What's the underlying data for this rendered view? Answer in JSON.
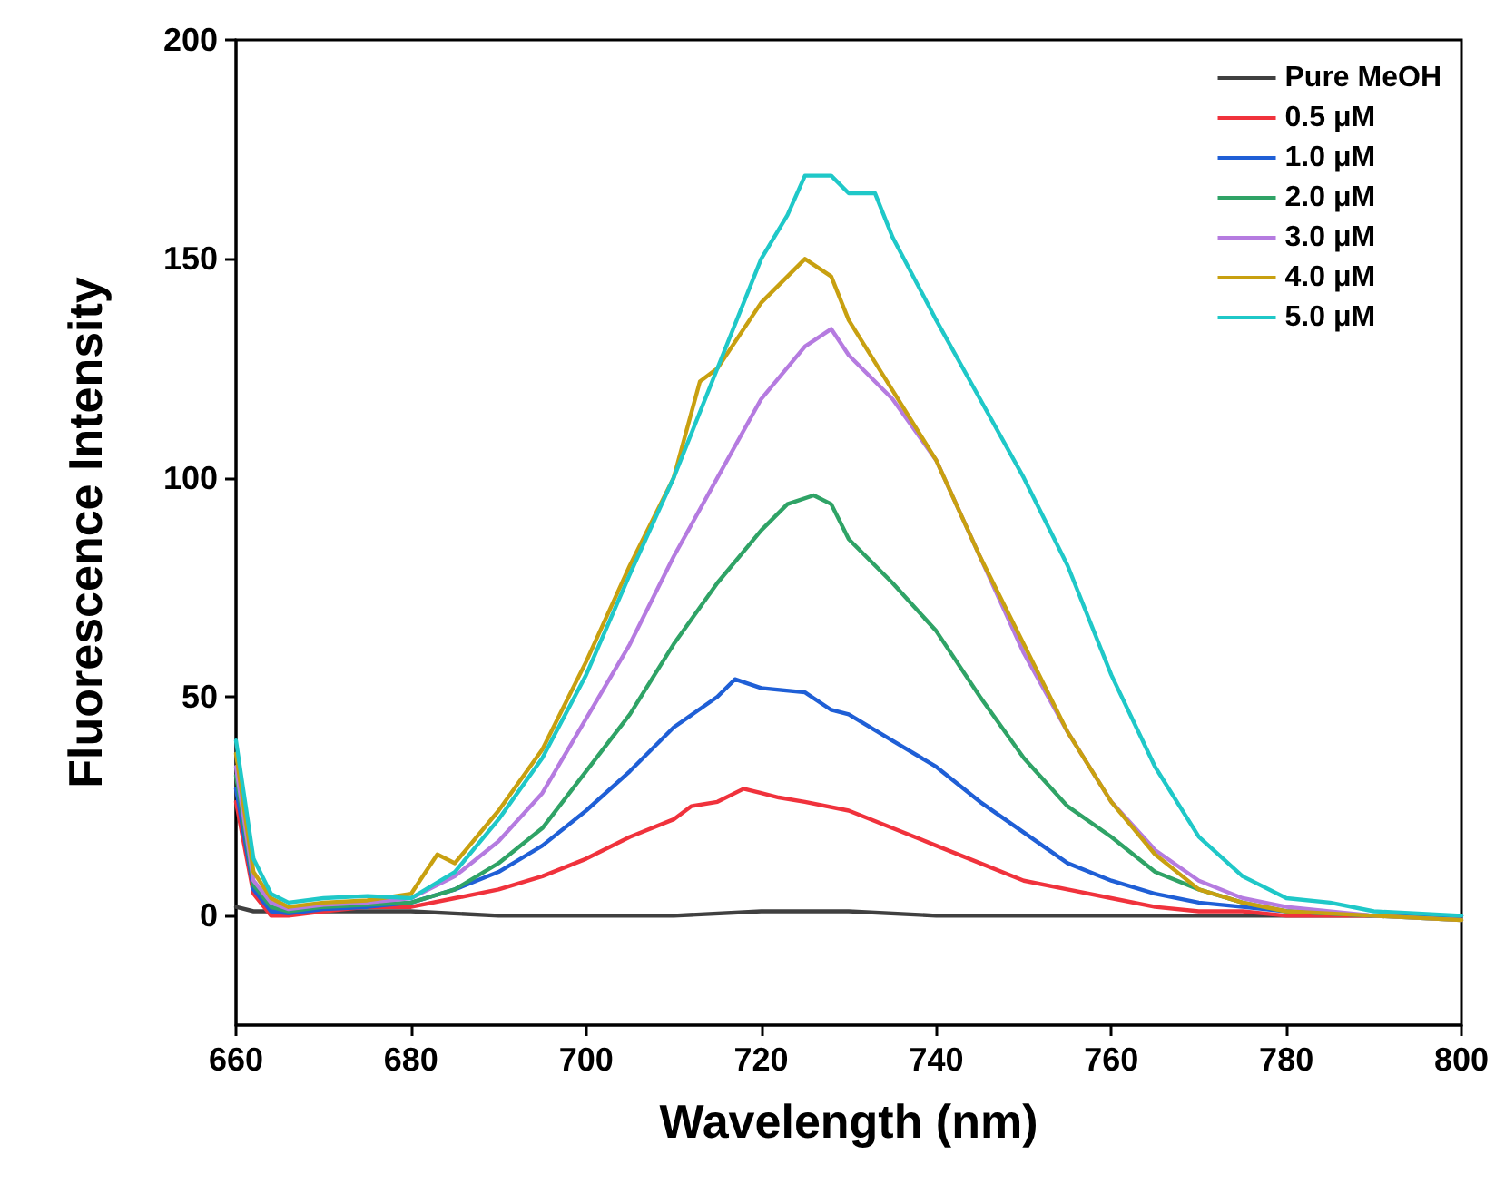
{
  "chart_data": {
    "type": "line",
    "xlabel": "Wavelength (nm)",
    "ylabel": "Fluorescence Intensity",
    "xlim": [
      660,
      800
    ],
    "xticks": [
      660,
      680,
      700,
      720,
      740,
      760,
      780,
      800
    ],
    "ylim": [
      -25,
      200
    ],
    "yticks": [
      0,
      50,
      100,
      150,
      200
    ],
    "grid": false,
    "legend": "top right",
    "marker": "none",
    "line_style": "solid",
    "series": [
      {
        "name": "Pure MeOH",
        "color": "#404040",
        "x": [
          660,
          662,
          665,
          670,
          680,
          690,
          700,
          710,
          720,
          730,
          740,
          750,
          760,
          770,
          780,
          790,
          800
        ],
        "values": [
          2,
          1,
          1,
          1,
          1,
          0,
          0,
          0,
          1,
          1,
          0,
          0,
          0,
          0,
          0,
          0,
          0
        ]
      },
      {
        "name": "0.5 μM",
        "color": "#f0323c",
        "x": [
          660,
          662,
          664,
          666,
          670,
          675,
          680,
          685,
          690,
          695,
          700,
          705,
          710,
          712,
          715,
          718,
          720,
          722,
          725,
          730,
          735,
          740,
          745,
          750,
          755,
          760,
          765,
          770,
          775,
          780,
          790,
          800
        ],
        "values": [
          26,
          5,
          0,
          0,
          1,
          2,
          2,
          4,
          6,
          9,
          13,
          18,
          22,
          25,
          26,
          29,
          28,
          27,
          26,
          24,
          20,
          16,
          12,
          8,
          6,
          4,
          2,
          1,
          1,
          0,
          0,
          0
        ]
      },
      {
        "name": "1.0 μM",
        "color": "#1f5fd6",
        "x": [
          660,
          662,
          664,
          666,
          670,
          675,
          680,
          685,
          690,
          695,
          700,
          705,
          710,
          715,
          717,
          720,
          725,
          728,
          730,
          735,
          740,
          745,
          750,
          755,
          760,
          765,
          770,
          775,
          780,
          790,
          800
        ],
        "values": [
          29,
          6,
          1,
          0.5,
          1.5,
          2,
          3,
          6,
          10,
          16,
          24,
          33,
          43,
          50,
          54,
          52,
          51,
          47,
          46,
          40,
          34,
          26,
          19,
          12,
          8,
          5,
          3,
          2,
          1,
          0,
          0
        ]
      },
      {
        "name": "2.0 μM",
        "color": "#2fa366",
        "x": [
          660,
          662,
          664,
          666,
          670,
          675,
          680,
          685,
          690,
          695,
          700,
          705,
          710,
          715,
          720,
          723,
          726,
          728,
          730,
          735,
          740,
          745,
          750,
          755,
          760,
          765,
          770,
          775,
          780,
          790,
          800
        ],
        "values": [
          32,
          7,
          2,
          1,
          2,
          2.5,
          3,
          6,
          12,
          20,
          33,
          46,
          62,
          76,
          88,
          94,
          96,
          94,
          86,
          76,
          65,
          50,
          36,
          25,
          18,
          10,
          6,
          3,
          1,
          0,
          -1
        ]
      },
      {
        "name": "3.0 μM",
        "color": "#b57be0",
        "x": [
          660,
          662,
          664,
          666,
          670,
          675,
          680,
          685,
          690,
          695,
          700,
          705,
          710,
          715,
          720,
          725,
          728,
          730,
          735,
          740,
          745,
          750,
          755,
          760,
          765,
          770,
          775,
          780,
          790,
          800
        ],
        "values": [
          34,
          8,
          3,
          1.5,
          2.5,
          3,
          4,
          9,
          17,
          28,
          45,
          62,
          82,
          100,
          118,
          130,
          134,
          128,
          118,
          104,
          82,
          60,
          42,
          26,
          15,
          8,
          4,
          2,
          0,
          -1
        ]
      },
      {
        "name": "4.0 μM",
        "color": "#c8a010",
        "x": [
          660,
          662,
          664,
          666,
          670,
          675,
          680,
          683,
          685,
          690,
          695,
          700,
          705,
          710,
          713,
          715,
          720,
          725,
          728,
          730,
          735,
          740,
          745,
          750,
          755,
          760,
          765,
          770,
          775,
          780,
          790,
          800
        ],
        "values": [
          37,
          10,
          4,
          2,
          3,
          3.5,
          5,
          14,
          12,
          24,
          38,
          58,
          80,
          100,
          122,
          125,
          140,
          150,
          146,
          136,
          120,
          104,
          82,
          62,
          42,
          26,
          14,
          6,
          3,
          1,
          0,
          -1
        ]
      },
      {
        "name": "5.0 μM",
        "color": "#1fc8c8",
        "x": [
          660,
          662,
          664,
          666,
          670,
          675,
          680,
          685,
          690,
          695,
          700,
          705,
          710,
          715,
          720,
          723,
          725,
          728,
          730,
          733,
          735,
          740,
          745,
          750,
          755,
          760,
          765,
          770,
          775,
          780,
          785,
          790,
          800
        ],
        "values": [
          40,
          13,
          5,
          3,
          4,
          4.5,
          4,
          10,
          22,
          36,
          55,
          78,
          100,
          125,
          150,
          160,
          169,
          169,
          165,
          165,
          155,
          136,
          118,
          100,
          80,
          55,
          34,
          18,
          9,
          4,
          3,
          1,
          0
        ]
      }
    ]
  }
}
